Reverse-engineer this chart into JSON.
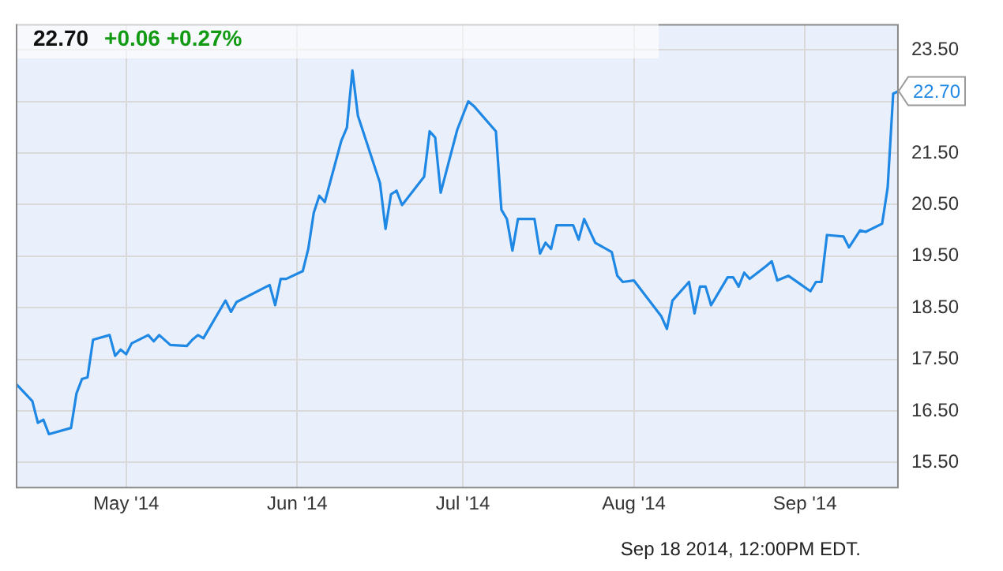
{
  "chart_data": {
    "type": "line",
    "title": "22.70",
    "subtitle": "+0.06 +0.27%",
    "annotations": [
      {
        "text": "22.70",
        "x": "2014-09-18",
        "y": 22.7
      },
      "Sep 18 2014, 12:00PM EDT."
    ],
    "x": [
      "2014-04-11",
      "2014-04-14",
      "2014-04-15",
      "2014-04-16",
      "2014-04-17",
      "2014-04-21",
      "2014-04-22",
      "2014-04-23",
      "2014-04-24",
      "2014-04-25",
      "2014-04-28",
      "2014-04-29",
      "2014-04-30",
      "2014-05-01",
      "2014-05-02",
      "2014-05-05",
      "2014-05-06",
      "2014-05-07",
      "2014-05-09",
      "2014-05-12",
      "2014-05-13",
      "2014-05-14",
      "2014-05-15",
      "2014-05-19",
      "2014-05-20",
      "2014-05-21",
      "2014-05-27",
      "2014-05-28",
      "2014-05-29",
      "2014-05-30",
      "2014-06-02",
      "2014-06-03",
      "2014-06-04",
      "2014-06-05",
      "2014-06-06",
      "2014-06-09",
      "2014-06-10",
      "2014-06-11",
      "2014-06-12",
      "2014-06-16",
      "2014-06-17",
      "2014-06-18",
      "2014-06-19",
      "2014-06-20",
      "2014-06-24",
      "2014-06-25",
      "2014-06-26",
      "2014-06-27",
      "2014-06-30",
      "2014-07-02",
      "2014-07-03",
      "2014-07-07",
      "2014-07-08",
      "2014-07-09",
      "2014-07-10",
      "2014-07-11",
      "2014-07-14",
      "2014-07-15",
      "2014-07-16",
      "2014-07-17",
      "2014-07-18",
      "2014-07-21",
      "2014-07-22",
      "2014-07-23",
      "2014-07-25",
      "2014-07-28",
      "2014-07-29",
      "2014-07-30",
      "2014-08-01",
      "2014-08-06",
      "2014-08-07",
      "2014-08-08",
      "2014-08-11",
      "2014-08-12",
      "2014-08-13",
      "2014-08-14",
      "2014-08-15",
      "2014-08-18",
      "2014-08-19",
      "2014-08-20",
      "2014-08-21",
      "2014-08-22",
      "2014-08-25",
      "2014-08-26",
      "2014-08-27",
      "2014-08-29",
      "2014-09-02",
      "2014-09-03",
      "2014-09-04",
      "2014-09-05",
      "2014-09-08",
      "2014-09-09",
      "2014-09-11",
      "2014-09-12",
      "2014-09-15",
      "2014-09-16",
      "2014-09-17",
      "2014-09-18"
    ],
    "series": [
      {
        "color": "#1f88e5",
        "values": [
          17.03,
          16.69,
          16.27,
          16.33,
          16.05,
          16.17,
          16.84,
          17.12,
          17.15,
          17.88,
          17.97,
          17.57,
          17.69,
          17.6,
          17.81,
          17.97,
          17.85,
          17.97,
          17.78,
          17.76,
          17.88,
          17.97,
          17.91,
          18.64,
          18.42,
          18.61,
          18.94,
          18.55,
          19.06,
          19.06,
          19.21,
          19.64,
          20.34,
          20.67,
          20.55,
          21.74,
          21.99,
          23.1,
          22.22,
          20.92,
          20.03,
          20.7,
          20.77,
          20.49,
          21.04,
          21.92,
          21.8,
          20.73,
          21.95,
          22.5,
          22.41,
          21.92,
          20.4,
          20.22,
          19.61,
          20.22,
          20.22,
          19.55,
          19.76,
          19.64,
          20.1,
          20.1,
          19.82,
          20.22,
          19.76,
          19.58,
          19.12,
          19.0,
          19.03,
          18.33,
          18.09,
          18.64,
          19.0,
          18.39,
          18.91,
          18.91,
          18.55,
          19.09,
          19.09,
          18.91,
          19.18,
          19.06,
          19.31,
          19.4,
          19.03,
          19.12,
          18.82,
          19.0,
          19.0,
          19.91,
          19.88,
          19.67,
          20.0,
          19.97,
          20.13,
          20.83,
          22.65,
          22.7
        ]
      }
    ],
    "xlim": [
      "2014-04-11",
      "2014-09-18"
    ],
    "xticks": [
      {
        "value": "2014-05-01",
        "label": "May '14"
      },
      {
        "value": "2014-06-01",
        "label": "Jun '14"
      },
      {
        "value": "2014-07-01",
        "label": "Jul '14"
      },
      {
        "value": "2014-08-01",
        "label": "Aug '14"
      },
      {
        "value": "2014-09-01",
        "label": "Sep '14"
      }
    ],
    "ylim": [
      15,
      24
    ],
    "yticks": [
      {
        "value": 15.5,
        "label": "15.50"
      },
      {
        "value": 16.5,
        "label": "16.50"
      },
      {
        "value": 17.5,
        "label": "17.50"
      },
      {
        "value": 18.5,
        "label": "18.50"
      },
      {
        "value": 19.5,
        "label": "19.50"
      },
      {
        "value": 20.5,
        "label": "20.50"
      },
      {
        "value": 21.5,
        "label": "21.50"
      },
      {
        "value": 22.5,
        "label": null
      },
      {
        "value": 23.5,
        "label": "23.50"
      }
    ],
    "grid": true,
    "legend": false,
    "marker": "none",
    "line_style": "solid"
  }
}
